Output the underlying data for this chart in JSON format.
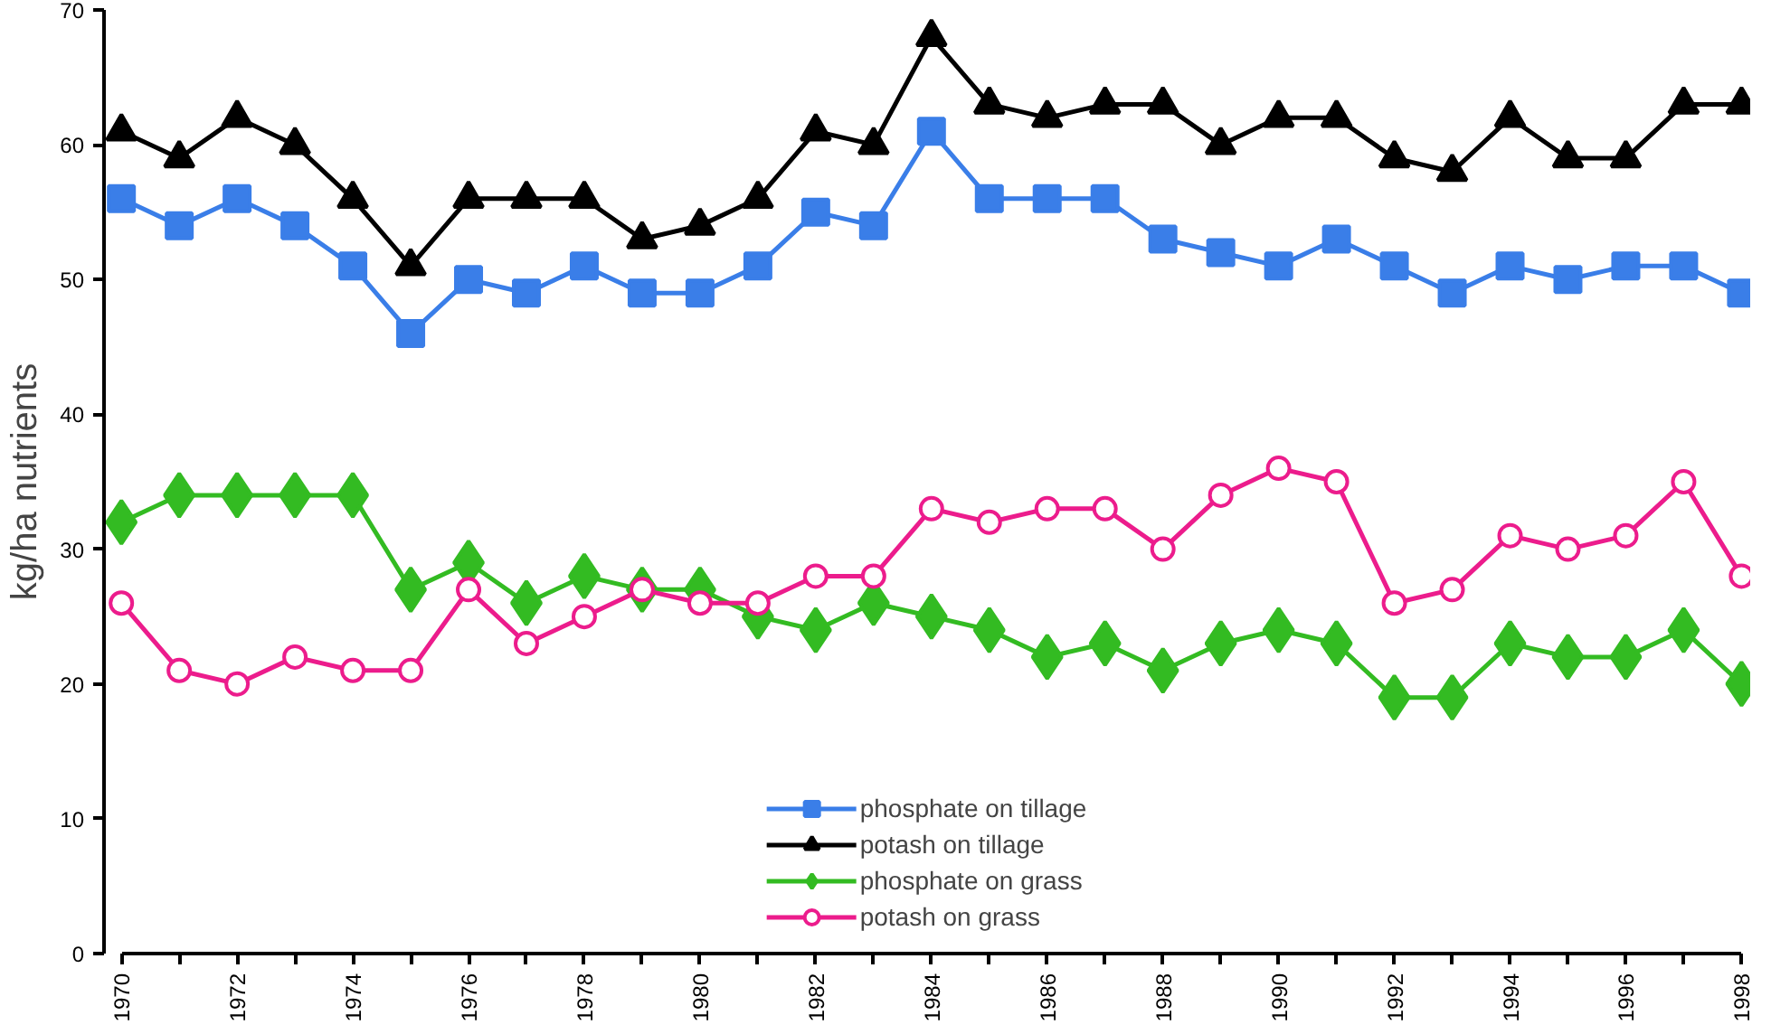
{
  "chart_data": {
    "type": "line",
    "ylabel": "kg/ha nutrients",
    "x": [
      1970,
      1971,
      1972,
      1973,
      1974,
      1975,
      1976,
      1977,
      1978,
      1979,
      1980,
      1981,
      1982,
      1983,
      1984,
      1985,
      1986,
      1987,
      1988,
      1989,
      1990,
      1991,
      1992,
      1993,
      1994,
      1995,
      1996,
      1997,
      1998
    ],
    "series": [
      {
        "name": "phosphate on tillage",
        "color": "#3a7ee8",
        "marker": "square",
        "values": [
          56,
          54,
          56,
          54,
          51,
          46,
          50,
          49,
          51,
          49,
          49,
          51,
          55,
          54,
          61,
          56,
          56,
          56,
          53,
          52,
          51,
          53,
          51,
          49,
          51,
          50,
          51,
          51,
          49
        ]
      },
      {
        "name": "potash on tillage",
        "color": "#000000",
        "marker": "triangle",
        "values": [
          61,
          59,
          62,
          60,
          56,
          51,
          56,
          56,
          56,
          53,
          54,
          56,
          61,
          60,
          68,
          63,
          62,
          63,
          63,
          60,
          62,
          62,
          59,
          58,
          62,
          59,
          59,
          63,
          63
        ]
      },
      {
        "name": "phosphate on grass",
        "color": "#33bb22",
        "marker": "diamond",
        "values": [
          32,
          34,
          34,
          34,
          34,
          27,
          29,
          26,
          28,
          27,
          27,
          25,
          24,
          26,
          25,
          24,
          22,
          23,
          21,
          23,
          24,
          23,
          19,
          19,
          23,
          22,
          22,
          24,
          20
        ]
      },
      {
        "name": "potash on grass",
        "color": "#ec1c8c",
        "marker": "circle",
        "values": [
          26,
          21,
          20,
          22,
          21,
          21,
          27,
          23,
          25,
          27,
          26,
          26,
          28,
          28,
          33,
          32,
          33,
          33,
          30,
          34,
          36,
          35,
          26,
          27,
          31,
          30,
          31,
          35,
          28
        ]
      }
    ],
    "xlim": [
      1970,
      1998
    ],
    "xticks": [
      1970,
      {
        "value": 1971,
        "label": null
      },
      1972,
      {
        "value": 1973,
        "label": null
      },
      1974,
      {
        "value": 1975,
        "label": null
      },
      1976,
      {
        "value": 1977,
        "label": null
      },
      1978,
      {
        "value": 1979,
        "label": null
      },
      1980,
      {
        "value": 1981,
        "label": null
      },
      1982,
      {
        "value": 1983,
        "label": null
      },
      1984,
      {
        "value": 1985,
        "label": null
      },
      1986,
      {
        "value": 1987,
        "label": null
      },
      1988,
      {
        "value": 1989,
        "label": null
      },
      1990,
      {
        "value": 1991,
        "label": null
      },
      1992,
      {
        "value": 1993,
        "label": null
      },
      1994,
      {
        "value": 1995,
        "label": null
      },
      1996,
      {
        "value": 1997,
        "label": null
      },
      1998
    ],
    "ylim": [
      0,
      70
    ],
    "yticks": [
      0,
      10,
      20,
      30,
      40,
      50,
      60,
      70
    ],
    "grid": false,
    "legend": "bottom",
    "line_style": "solid"
  }
}
